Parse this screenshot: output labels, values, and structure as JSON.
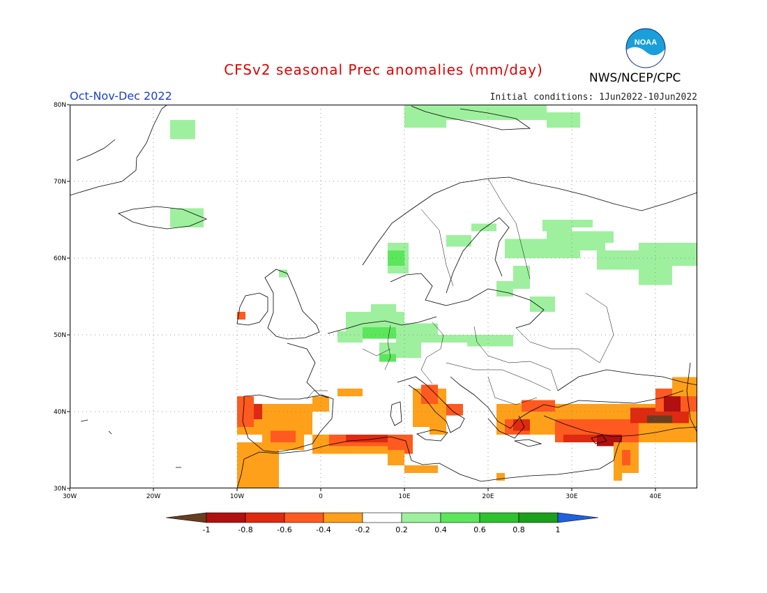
{
  "header": {
    "title": "CFSv2 seasonal Prec anomalies (mm/day)",
    "period": "Oct-Nov-Dec 2022",
    "initial_conditions": "Initial conditions: 1Jun2022-10Jun2022",
    "agency": "NWS/NCEP/CPC",
    "logo_text": "NOAA"
  },
  "map": {
    "lon_range": [
      -30,
      45
    ],
    "lat_range": [
      30,
      80
    ],
    "lat_labels": [
      "80N",
      "70N",
      "60N",
      "50N",
      "40N",
      "30N"
    ],
    "lon_labels": [
      "30W",
      "20W",
      "10W",
      "0",
      "10E",
      "20E",
      "30E",
      "40E"
    ],
    "land_color": "#ffffff",
    "coast_color": "#000000"
  },
  "colorbar": {
    "labels": [
      "-1",
      "-0.8",
      "-0.6",
      "-0.4",
      "-0.2",
      "0.2",
      "0.4",
      "0.6",
      "0.8",
      "1"
    ],
    "colors": {
      "lt_m1": "#6b3d20",
      "m1_m08": "#b01010",
      "m08_m06": "#dd2a10",
      "m06_m04": "#ff5a1f",
      "m04_m02": "#ffa01a",
      "neutral": "#ffffff",
      "p02_p04": "#9ef09e",
      "p04_p06": "#5ce65c",
      "p06_p08": "#2ec22e",
      "p08_p1": "#1aa01a",
      "gt_p1": "#2060e0"
    }
  },
  "anomalies": [
    {
      "lon0": -18,
      "lon1": -15,
      "lat0": 75.5,
      "lat1": 78,
      "v": 0.3
    },
    {
      "lon0": 10,
      "lon1": 15,
      "lat0": 77,
      "lat1": 80,
      "v": 0.3
    },
    {
      "lon0": 15,
      "lon1": 27,
      "lat0": 78,
      "lat1": 80,
      "v": 0.3
    },
    {
      "lon0": 27,
      "lon1": 31,
      "lat0": 77,
      "lat1": 79,
      "v": 0.3
    },
    {
      "lon0": -18,
      "lon1": -14,
      "lat0": 64,
      "lat1": 66.5,
      "v": 0.3
    },
    {
      "lon0": 26.5,
      "lon1": 30,
      "lat0": 63.5,
      "lat1": 65,
      "v": 0.3
    },
    {
      "lon0": 30,
      "lon1": 32.5,
      "lat0": 64,
      "lat1": 65,
      "v": 0.3
    },
    {
      "lon0": 27,
      "lon1": 35,
      "lat0": 62,
      "lat1": 63.5,
      "v": 0.3
    },
    {
      "lon0": 22,
      "lon1": 31,
      "lat0": 60,
      "lat1": 62.5,
      "v": 0.3
    },
    {
      "lon0": 30,
      "lon1": 34,
      "lat0": 61,
      "lat1": 62,
      "v": 0.3
    },
    {
      "lon0": 33,
      "lon1": 42,
      "lat0": 58.5,
      "lat1": 61,
      "v": 0.3
    },
    {
      "lon0": 38,
      "lon1": 45,
      "lat0": 59,
      "lat1": 62,
      "v": 0.3
    },
    {
      "lon0": 38,
      "lon1": 42,
      "lat0": 56.5,
      "lat1": 59,
      "v": 0.3
    },
    {
      "lon0": 8,
      "lon1": 10.5,
      "lat0": 58,
      "lat1": 62,
      "v": 0.3
    },
    {
      "lon0": 8,
      "lon1": 10,
      "lat0": 59,
      "lat1": 61,
      "v": 0.5
    },
    {
      "lon0": 15,
      "lon1": 18,
      "lat0": 61.5,
      "lat1": 63,
      "v": 0.3
    },
    {
      "lon0": 18,
      "lon1": 21,
      "lat0": 63.5,
      "lat1": 64.5,
      "v": 0.3
    },
    {
      "lon0": 23,
      "lon1": 25,
      "lat0": 56,
      "lat1": 59,
      "v": 0.3
    },
    {
      "lon0": 21,
      "lon1": 23,
      "lat0": 55,
      "lat1": 57,
      "v": 0.3
    },
    {
      "lon0": 25,
      "lon1": 28,
      "lat0": 53,
      "lat1": 55,
      "v": 0.3
    },
    {
      "lon0": -5,
      "lon1": -4,
      "lat0": 57.5,
      "lat1": 58.5,
      "v": 0.3
    },
    {
      "lon0": 3,
      "lon1": 10,
      "lat0": 50,
      "lat1": 53,
      "v": 0.3
    },
    {
      "lon0": 6,
      "lon1": 9,
      "lat0": 51,
      "lat1": 54,
      "v": 0.3
    },
    {
      "lon0": 5,
      "lon1": 9,
      "lat0": 49.5,
      "lat1": 51,
      "v": 0.5
    },
    {
      "lon0": 2,
      "lon1": 5,
      "lat0": 49,
      "lat1": 50.5,
      "v": 0.3
    },
    {
      "lon0": 9,
      "lon1": 14,
      "lat0": 49,
      "lat1": 51.5,
      "v": 0.3
    },
    {
      "lon0": 14,
      "lon1": 18,
      "lat0": 49,
      "lat1": 50,
      "v": 0.3
    },
    {
      "lon0": 17.5,
      "lon1": 23,
      "lat0": 48.5,
      "lat1": 50,
      "v": 0.3
    },
    {
      "lon0": 7,
      "lon1": 12,
      "lat0": 47,
      "lat1": 49,
      "v": 0.3
    },
    {
      "lon0": 7,
      "lon1": 9,
      "lat0": 46.5,
      "lat1": 47.5,
      "v": 0.5
    },
    {
      "lon0": -10,
      "lon1": -9,
      "lat0": 52,
      "lat1": 53,
      "v": -0.5
    },
    {
      "lon0": -10,
      "lon1": -1,
      "lat0": 37,
      "lat1": 41,
      "v": -0.3
    },
    {
      "lon0": -10,
      "lon1": -8,
      "lat0": 38,
      "lat1": 42,
      "v": -0.5
    },
    {
      "lon0": -8,
      "lon1": -7,
      "lat0": 39,
      "lat1": 41,
      "v": -0.7
    },
    {
      "lon0": -1,
      "lon1": 1,
      "lat0": 40,
      "lat1": 42,
      "v": -0.3
    },
    {
      "lon0": -7,
      "lon1": -2,
      "lat0": 35,
      "lat1": 38,
      "v": -0.3
    },
    {
      "lon0": -6,
      "lon1": -3,
      "lat0": 36,
      "lat1": 37.5,
      "v": -0.5
    },
    {
      "lon0": -10,
      "lon1": -5,
      "lat0": 30,
      "lat1": 36,
      "v": -0.3
    },
    {
      "lon0": -1,
      "lon1": 10,
      "lat0": 34.5,
      "lat1": 37,
      "v": -0.3
    },
    {
      "lon0": 1,
      "lon1": 10,
      "lat0": 35.5,
      "lat1": 37,
      "v": -0.5
    },
    {
      "lon0": 3,
      "lon1": 8,
      "lat0": 36,
      "lat1": 37,
      "v": -0.7
    },
    {
      "lon0": 8,
      "lon1": 11,
      "lat0": 34.5,
      "lat1": 37,
      "v": -0.5
    },
    {
      "lon0": 8,
      "lon1": 10,
      "lat0": 33,
      "lat1": 35,
      "v": -0.3
    },
    {
      "lon0": 2,
      "lon1": 5,
      "lat0": 42,
      "lat1": 43,
      "v": -0.3
    },
    {
      "lon0": 11,
      "lon1": 15,
      "lat0": 38,
      "lat1": 43,
      "v": -0.3
    },
    {
      "lon0": 12,
      "lon1": 14,
      "lat0": 41,
      "lat1": 43.5,
      "v": -0.5
    },
    {
      "lon0": 15,
      "lon1": 17,
      "lat0": 39.5,
      "lat1": 41,
      "v": -0.5
    },
    {
      "lon0": 13,
      "lon1": 15,
      "lat0": 37,
      "lat1": 38,
      "v": -0.3
    },
    {
      "lon0": 10,
      "lon1": 14,
      "lat0": 32,
      "lat1": 33,
      "v": -0.3
    },
    {
      "lon0": 21,
      "lon1": 28,
      "lat0": 37,
      "lat1": 41,
      "v": -0.3
    },
    {
      "lon0": 22,
      "lon1": 25,
      "lat0": 37,
      "lat1": 39,
      "v": -0.5
    },
    {
      "lon0": 23,
      "lon1": 25,
      "lat0": 37.5,
      "lat1": 39,
      "v": -0.7
    },
    {
      "lon0": 24,
      "lon1": 28,
      "lat0": 40,
      "lat1": 41.5,
      "v": -0.5
    },
    {
      "lon0": 28,
      "lon1": 45,
      "lat0": 36,
      "lat1": 41,
      "v": -0.3
    },
    {
      "lon0": 28,
      "lon1": 38,
      "lat0": 36,
      "lat1": 39,
      "v": -0.5
    },
    {
      "lon0": 29,
      "lon1": 36,
      "lat0": 36,
      "lat1": 37,
      "v": -0.7
    },
    {
      "lon0": 33,
      "lon1": 36,
      "lat0": 35.5,
      "lat1": 37,
      "v": -0.9
    },
    {
      "lon0": 37,
      "lon1": 44,
      "lat0": 38.5,
      "lat1": 40.5,
      "v": -0.7
    },
    {
      "lon0": 39,
      "lon1": 42,
      "lat0": 38.5,
      "lat1": 39.5,
      "v": -1.2
    },
    {
      "lon0": 40,
      "lon1": 45,
      "lat0": 40,
      "lat1": 43,
      "v": -0.5
    },
    {
      "lon0": 41,
      "lon1": 43,
      "lat0": 40,
      "lat1": 42,
      "v": -0.9
    },
    {
      "lon0": 42,
      "lon1": 45,
      "lat0": 42,
      "lat1": 44.5,
      "v": -0.3
    },
    {
      "lon0": 35,
      "lon1": 38,
      "lat0": 32,
      "lat1": 36,
      "v": -0.3
    },
    {
      "lon0": 36,
      "lon1": 37,
      "lat0": 33,
      "lat1": 35,
      "v": -0.5
    },
    {
      "lon0": 35,
      "lon1": 36,
      "lat0": 31,
      "lat1": 32,
      "v": -0.3
    },
    {
      "lon0": 21,
      "lon1": 22,
      "lat0": 31,
      "lat1": 32,
      "v": -0.3
    }
  ]
}
